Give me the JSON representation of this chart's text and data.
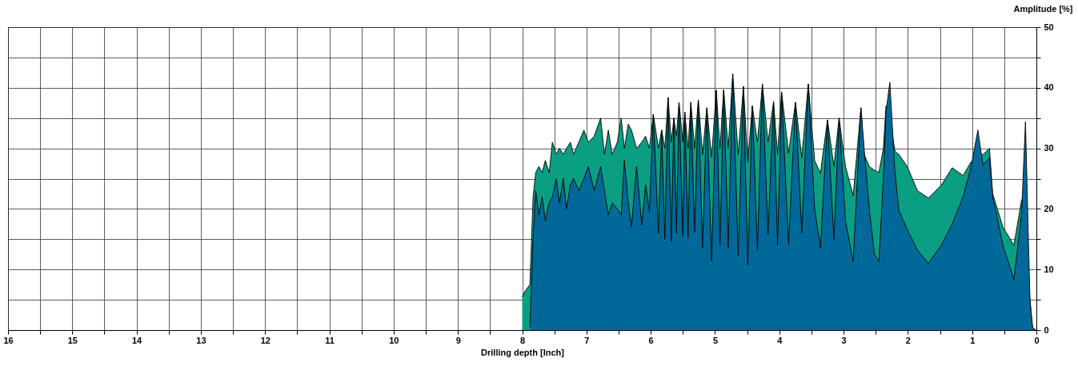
{
  "chart_data": {
    "type": "area",
    "xlabel": "Drilling depth [Inch]",
    "ylabel": "Amplitude [%]",
    "grid": true,
    "xlim": [
      16,
      0
    ],
    "ylim": [
      0,
      50
    ],
    "xticks": [
      16,
      {
        "value": 15.5,
        "label": null
      },
      15,
      {
        "value": 14.5,
        "label": null
      },
      14,
      {
        "value": 13.5,
        "label": null
      },
      13,
      {
        "value": 12.5,
        "label": null
      },
      12,
      {
        "value": 11.5,
        "label": null
      },
      11,
      {
        "value": 10.5,
        "label": null
      },
      10,
      {
        "value": 9.5,
        "label": null
      },
      9,
      {
        "value": 8.5,
        "label": null
      },
      8,
      {
        "value": 7.5,
        "label": null
      },
      7,
      {
        "value": 6.5,
        "label": null
      },
      6,
      {
        "value": 5.5,
        "label": null
      },
      5,
      {
        "value": 4.5,
        "label": null
      },
      4,
      {
        "value": 3.5,
        "label": null
      },
      3,
      {
        "value": 2.5,
        "label": null
      },
      2,
      {
        "value": 1.5,
        "label": null
      },
      1,
      {
        "value": 0.5,
        "label": null
      },
      0
    ],
    "yticks": [
      0,
      {
        "value": 5,
        "label": null
      },
      10,
      {
        "value": 15,
        "label": null
      },
      20,
      {
        "value": 25,
        "label": null
      },
      30,
      {
        "value": 35,
        "label": null
      },
      40,
      {
        "value": 45,
        "label": null
      },
      50
    ],
    "series": [
      {
        "color": "#0a9e82",
        "x": [
          8.0,
          7.95,
          7.88,
          7.83,
          7.79,
          7.74,
          7.69,
          7.64,
          7.58,
          7.53,
          7.47,
          7.42,
          7.36,
          7.31,
          7.25,
          7.2,
          7.12,
          7.04,
          6.97,
          6.88,
          6.78,
          6.72,
          6.66,
          6.6,
          6.52,
          6.46,
          6.41,
          6.35,
          6.3,
          6.22,
          6.14,
          6.08,
          6.02,
          5.96,
          5.88,
          5.83,
          5.78,
          5.73,
          5.68,
          5.64,
          5.6,
          5.56,
          5.5,
          5.47,
          5.42,
          5.376,
          5.318,
          5.26,
          5.194,
          5.127,
          5.053,
          4.98,
          4.923,
          4.865,
          4.795,
          4.724,
          4.64,
          4.558,
          4.49,
          4.42,
          4.34,
          4.263,
          4.176,
          4.089,
          4.027,
          3.964,
          3.856,
          3.748,
          3.65,
          3.549,
          3.45,
          3.36,
          3.25,
          3.15,
          3.07,
          2.97,
          2.85,
          2.73,
          2.68,
          2.6,
          2.52,
          2.45,
          2.38,
          2.34,
          2.28,
          2.2,
          2.14,
          2.01,
          1.85,
          1.68,
          1.48,
          1.31,
          1.14,
          1.02,
          0.83,
          0.73,
          0.68,
          0.52,
          0.35,
          0.23,
          0.17,
          0.1,
          0.06,
          0.02,
          0
        ],
        "values": [
          5.5,
          6.5,
          7.5,
          22,
          26,
          27,
          26,
          28,
          26,
          31,
          29,
          30,
          29,
          30,
          31,
          29,
          31,
          33,
          31,
          32,
          35,
          29,
          33,
          29,
          31,
          35,
          30,
          34,
          33,
          30,
          31,
          32,
          30,
          35.6,
          30,
          33,
          30,
          38.4,
          31,
          35,
          32,
          37.6,
          31,
          36,
          30,
          37.6,
          30,
          38,
          29,
          36.7,
          28.5,
          39.6,
          30,
          39.7,
          30,
          42.3,
          29,
          40.2,
          27.7,
          37,
          31,
          40.6,
          31,
          37.7,
          29,
          39.3,
          29.2,
          37.6,
          28.4,
          40.6,
          28,
          25.9,
          34.7,
          27,
          35,
          27,
          22.2,
          36.7,
          29,
          27,
          26.4,
          26,
          30,
          37,
          35,
          29.5,
          29,
          27,
          23,
          21.8,
          23.9,
          26.8,
          25.5,
          27.7,
          29,
          30,
          22.5,
          17,
          14,
          21.5,
          21,
          5,
          0.5,
          0,
          0
        ]
      },
      {
        "color": "#00699a",
        "x": [
          7.88,
          7.83,
          7.79,
          7.74,
          7.69,
          7.64,
          7.58,
          7.53,
          7.47,
          7.42,
          7.36,
          7.31,
          7.25,
          7.2,
          7.12,
          7.04,
          6.97,
          6.88,
          6.78,
          6.72,
          6.66,
          6.6,
          6.52,
          6.46,
          6.41,
          6.35,
          6.3,
          6.22,
          6.14,
          6.08,
          6.02,
          5.96,
          5.88,
          5.83,
          5.78,
          5.73,
          5.68,
          5.64,
          5.6,
          5.56,
          5.5,
          5.47,
          5.42,
          5.376,
          5.318,
          5.26,
          5.194,
          5.127,
          5.053,
          4.98,
          4.923,
          4.865,
          4.795,
          4.724,
          4.64,
          4.558,
          4.49,
          4.42,
          4.34,
          4.263,
          4.176,
          4.089,
          4.027,
          3.964,
          3.856,
          3.748,
          3.65,
          3.549,
          3.45,
          3.36,
          3.25,
          3.15,
          3.07,
          2.97,
          2.85,
          2.73,
          2.68,
          2.6,
          2.52,
          2.45,
          2.38,
          2.34,
          2.28,
          2.2,
          2.14,
          2.01,
          1.85,
          1.68,
          1.48,
          1.31,
          1.14,
          1.02,
          0.91,
          0.83,
          0.73,
          0.68,
          0.52,
          0.35,
          0.23,
          0.17,
          0.1,
          0.06,
          0.02,
          0
        ],
        "values": [
          0.5,
          15,
          23,
          19,
          22,
          18,
          21,
          22,
          25,
          21,
          25,
          20,
          24,
          25,
          23,
          25,
          27,
          23,
          27,
          23,
          19,
          21,
          20,
          19,
          28,
          21,
          17,
          27,
          17.3,
          24,
          19.5,
          35.6,
          16,
          33,
          15,
          38.4,
          14.6,
          35,
          16,
          37.6,
          15.5,
          36,
          15.2,
          37.6,
          16.2,
          38,
          13.6,
          36.7,
          11.4,
          39.6,
          14,
          39.7,
          13.6,
          42.3,
          12.3,
          40.2,
          10.7,
          37,
          13.2,
          40.6,
          15.8,
          37.7,
          14,
          39.3,
          14.2,
          37.6,
          16,
          40.6,
          20,
          13.6,
          34.7,
          14.9,
          35,
          18,
          11.2,
          36.7,
          30,
          20,
          12.5,
          11.3,
          25,
          36,
          40.9,
          26,
          19.8,
          16.6,
          13.2,
          11,
          14,
          17.5,
          22,
          26.8,
          33,
          27.2,
          28.5,
          22,
          14,
          8.3,
          19.3,
          34.4,
          5,
          0.5,
          0,
          0
        ]
      }
    ]
  }
}
